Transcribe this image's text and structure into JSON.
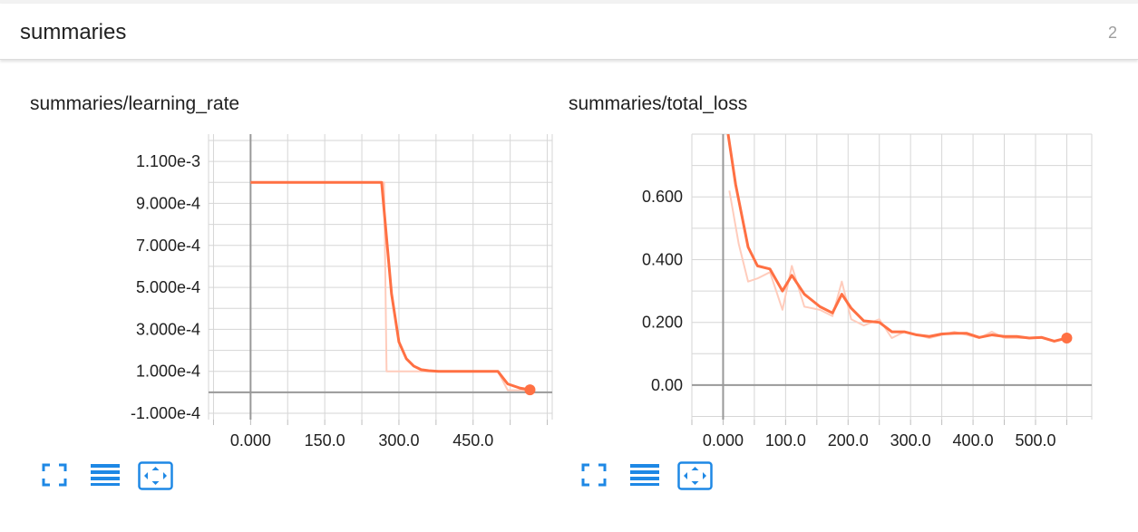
{
  "header": {
    "title": "summaries",
    "count": "2"
  },
  "accent": "#ff7043",
  "accent_light": "#ffccbc",
  "toolbar_color": "#1e88e5",
  "toolbar_icons": [
    "fullscreen-icon",
    "toggle-log-scale-icon",
    "fit-domain-icon"
  ],
  "chart_data": [
    {
      "type": "line",
      "title": "summaries/learning_rate",
      "xlim": [
        -85,
        610
      ],
      "ylim": [
        -0.00013,
        0.00123
      ],
      "x_ticks": [
        0,
        150,
        300,
        450
      ],
      "x_tick_labels": [
        "0.000",
        "150.0",
        "300.0",
        "450.0"
      ],
      "y_ticks": [
        0.0011,
        0.0009,
        0.0007,
        0.0005,
        0.0003,
        0.0001,
        -0.0001
      ],
      "y_tick_labels": [
        "1.100e-3",
        "9.000e-4",
        "7.000e-4",
        "5.000e-4",
        "3.000e-4",
        "1.000e-4",
        "-1.000e-4"
      ],
      "grid": true,
      "series": [
        {
          "kind": "raw",
          "x": [
            0,
            270,
            275,
            285,
            300,
            315,
            330,
            345,
            360,
            380,
            400,
            420,
            450,
            500,
            520,
            545,
            565
          ],
          "y": [
            0.001,
            0.001,
            0.0001,
            0.0001,
            0.0001,
            0.0001,
            0.0001,
            0.0001,
            0.0001,
            0.0001,
            0.0001,
            0.0001,
            0.0001,
            0.0001,
            1e-05,
            1e-05,
            1e-05
          ]
        },
        {
          "kind": "smoothed",
          "x": [
            0,
            265,
            285,
            300,
            315,
            330,
            345,
            360,
            380,
            400,
            430,
            450,
            475,
            500,
            520,
            545,
            565
          ],
          "y": [
            0.001,
            0.001,
            0.00047,
            0.00024,
            0.00016,
            0.000125,
            0.000108,
            0.000103,
            0.0001,
            0.0001,
            0.0001,
            0.0001,
            0.0001,
            0.0001,
            4e-05,
            2e-05,
            1.2e-05
          ]
        }
      ]
    },
    {
      "type": "line",
      "title": "summaries/total_loss",
      "xlim": [
        -50,
        590
      ],
      "ylim": [
        -0.11,
        0.8
      ],
      "x_ticks": [
        0,
        100,
        200,
        300,
        400,
        500
      ],
      "x_tick_labels": [
        "0.000",
        "100.0",
        "200.0",
        "300.0",
        "400.0",
        "500.0"
      ],
      "y_ticks": [
        0.6,
        0.4,
        0.2,
        0.0
      ],
      "y_tick_labels": [
        "0.600",
        "0.400",
        "0.200",
        "0.00"
      ],
      "grid": true,
      "series": [
        {
          "kind": "raw",
          "x": [
            10,
            25,
            40,
            55,
            75,
            95,
            110,
            130,
            155,
            175,
            190,
            205,
            225,
            250,
            270,
            290,
            310,
            330,
            350,
            370,
            390,
            410,
            430,
            450,
            470,
            490,
            510,
            530,
            550
          ],
          "y": [
            0.62,
            0.45,
            0.33,
            0.34,
            0.36,
            0.24,
            0.38,
            0.25,
            0.24,
            0.22,
            0.33,
            0.21,
            0.19,
            0.21,
            0.15,
            0.17,
            0.16,
            0.15,
            0.16,
            0.17,
            0.16,
            0.15,
            0.17,
            0.15,
            0.15,
            0.15,
            0.15,
            0.14,
            0.15
          ]
        },
        {
          "kind": "smoothed",
          "x": [
            8,
            20,
            40,
            55,
            75,
            95,
            110,
            130,
            155,
            175,
            190,
            205,
            225,
            250,
            270,
            290,
            310,
            330,
            350,
            370,
            390,
            410,
            430,
            450,
            470,
            490,
            510,
            530,
            550
          ],
          "y": [
            0.8,
            0.64,
            0.44,
            0.38,
            0.37,
            0.3,
            0.35,
            0.29,
            0.25,
            0.23,
            0.29,
            0.245,
            0.205,
            0.2,
            0.17,
            0.17,
            0.16,
            0.155,
            0.163,
            0.165,
            0.165,
            0.152,
            0.16,
            0.155,
            0.155,
            0.15,
            0.152,
            0.14,
            0.15
          ]
        }
      ]
    }
  ]
}
